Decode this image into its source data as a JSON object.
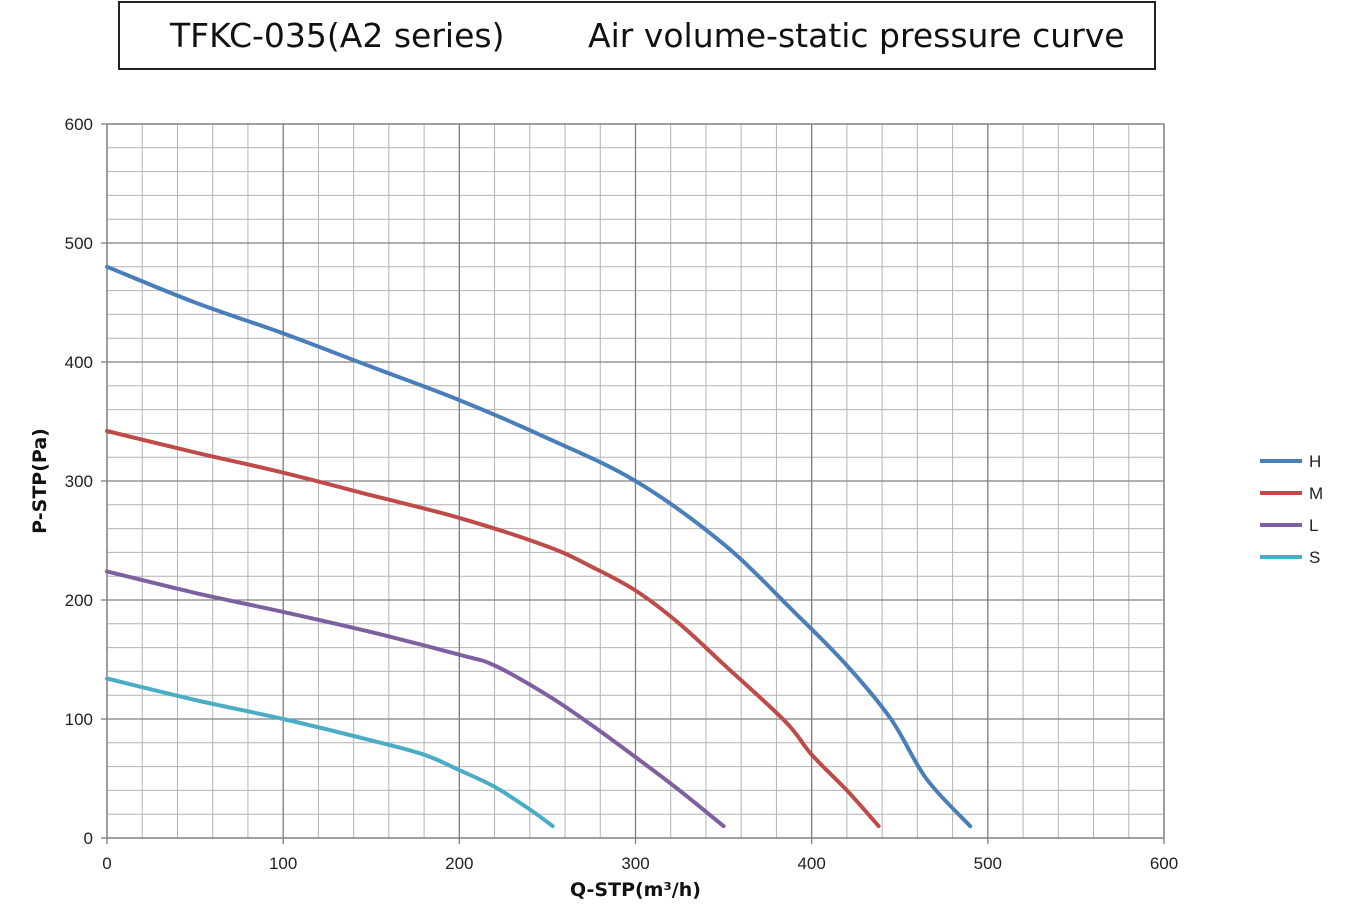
{
  "title": {
    "model": "TFKC-035(A2 series)",
    "description": "Air volume-static pressure curve"
  },
  "chart_data": {
    "type": "line",
    "xlabel": "Q-STP(m³/h)",
    "ylabel": "P-STP(Pa)",
    "xlim": [
      0,
      600
    ],
    "ylim": [
      0,
      600
    ],
    "x_ticks": [
      0,
      100,
      200,
      300,
      400,
      500,
      600
    ],
    "y_ticks": [
      0,
      100,
      200,
      300,
      400,
      500,
      600
    ],
    "x_minor_step": 20,
    "y_minor_step": 20,
    "grid": true,
    "legend_position": "right",
    "series": [
      {
        "name": "H",
        "color": "#4a7ebb",
        "points": [
          [
            0,
            480
          ],
          [
            50,
            450
          ],
          [
            100,
            424
          ],
          [
            150,
            396
          ],
          [
            200,
            368
          ],
          [
            250,
            336
          ],
          [
            300,
            300
          ],
          [
            350,
            247
          ],
          [
            390,
            190
          ],
          [
            420,
            145
          ],
          [
            445,
            100
          ],
          [
            465,
            50
          ],
          [
            490,
            10
          ]
        ]
      },
      {
        "name": "M",
        "color": "#be4b48",
        "points": [
          [
            0,
            342
          ],
          [
            50,
            324
          ],
          [
            100,
            307
          ],
          [
            150,
            288
          ],
          [
            200,
            269
          ],
          [
            250,
            245
          ],
          [
            275,
            228
          ],
          [
            300,
            208
          ],
          [
            325,
            180
          ],
          [
            350,
            146
          ],
          [
            385,
            98
          ],
          [
            400,
            70
          ],
          [
            420,
            40
          ],
          [
            438,
            10
          ]
        ]
      },
      {
        "name": "L",
        "color": "#7d60a0",
        "points": [
          [
            0,
            224
          ],
          [
            50,
            206
          ],
          [
            100,
            190
          ],
          [
            150,
            173
          ],
          [
            200,
            154
          ],
          [
            220,
            145
          ],
          [
            250,
            120
          ],
          [
            275,
            95
          ],
          [
            300,
            68
          ],
          [
            325,
            40
          ],
          [
            350,
            10
          ]
        ]
      },
      {
        "name": "S",
        "color": "#4bacc6",
        "points": [
          [
            0,
            134
          ],
          [
            50,
            116
          ],
          [
            100,
            100
          ],
          [
            150,
            82
          ],
          [
            180,
            70
          ],
          [
            200,
            57
          ],
          [
            220,
            43
          ],
          [
            240,
            24
          ],
          [
            253,
            10
          ]
        ]
      }
    ]
  }
}
